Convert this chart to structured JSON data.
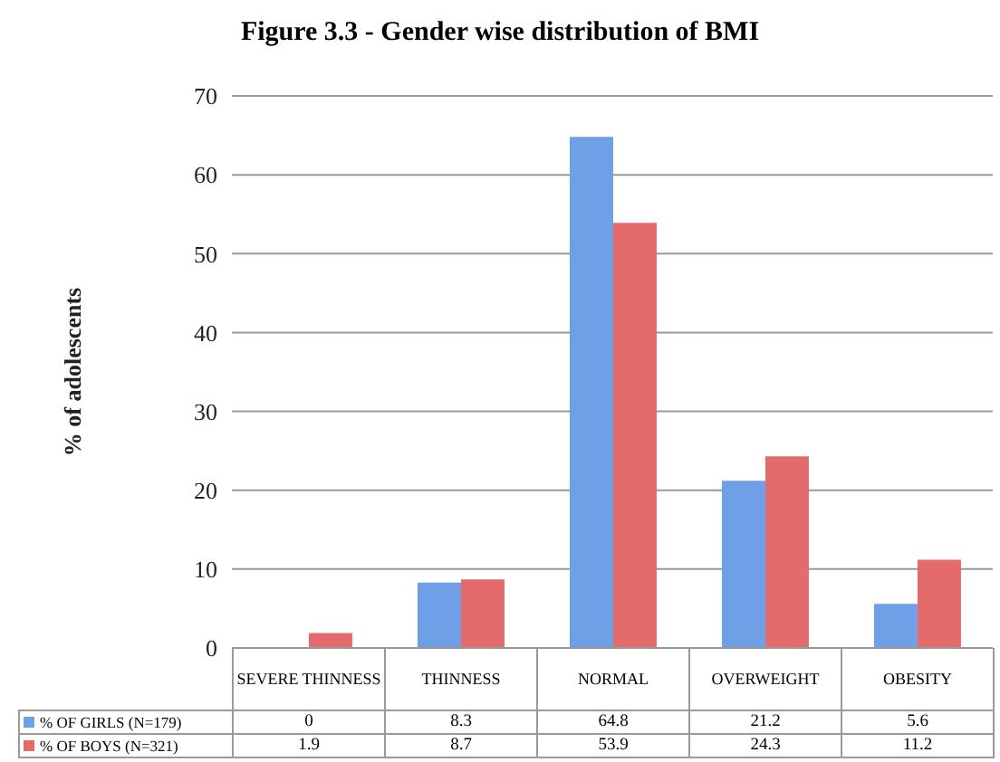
{
  "chart_data": {
    "type": "bar",
    "title": "Figure 3.3 - Gender wise distribution of BMI",
    "ylabel": "% of adolescents",
    "categories": [
      "SEVERE THINNESS",
      "THINNESS",
      "NORMAL",
      "OVERWEIGHT",
      "OBESITY"
    ],
    "series": [
      {
        "name": "% OF GIRLS (N=179)",
        "color": "#6f9fe6",
        "values": [
          0,
          8.3,
          64.8,
          21.2,
          5.6
        ]
      },
      {
        "name": "% OF BOYS (N=321)",
        "color": "#e46b6b",
        "values": [
          1.9,
          8.7,
          53.9,
          24.3,
          11.2
        ]
      }
    ],
    "ylim": [
      0,
      70
    ],
    "yticks": [
      0,
      10,
      20,
      30,
      40,
      50,
      60,
      70
    ],
    "grid": "y",
    "legend": "bottom",
    "data_labels": true
  }
}
